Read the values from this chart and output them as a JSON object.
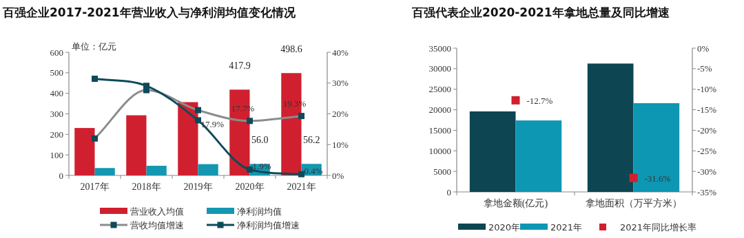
{
  "chart_data": [
    {
      "type": "bar",
      "title": "百强企业2017-2021年营业收入与净利润均值变化情况",
      "annotations": [
        "单位：亿元"
      ],
      "categories": [
        "2017年",
        "2018年",
        "2019年",
        "2020年",
        "2021年"
      ],
      "series": [
        {
          "name": "营业收入均值",
          "color": "#d0202f",
          "values": [
            231,
            293,
            357,
            417.9,
            498.6
          ],
          "value_labels": [
            null,
            null,
            null,
            "417.9",
            "498.6"
          ]
        },
        {
          "name": "净利润均值",
          "color": "#1497b0",
          "values": [
            36,
            47,
            55,
            56.0,
            56.2
          ],
          "value_labels": [
            null,
            null,
            null,
            "56.0",
            "56.2"
          ]
        },
        {
          "name": "营收均值增速",
          "type": "line",
          "axis": "y2",
          "color": "#8c8c8c",
          "values": [
            12,
            27.7,
            21.2,
            17.7,
            19.3
          ],
          "value_labels": [
            null,
            null,
            null,
            "17.7%",
            "19.3%"
          ]
        },
        {
          "name": "净利润均值增速",
          "type": "line",
          "axis": "y2",
          "color": "#0d4a5a",
          "values": [
            31.4,
            29.1,
            17.9,
            1.9,
            0.4
          ],
          "value_labels": [
            null,
            null,
            "17.9%",
            "1.9%",
            "0.4%"
          ]
        }
      ],
      "ylim": [
        0,
        600
      ],
      "yticks": [
        0,
        100,
        200,
        300,
        400,
        500,
        600
      ],
      "y2lim": [
        0,
        40
      ],
      "y2ticks": [
        {
          "value": 0,
          "label": "0%"
        },
        {
          "value": 10,
          "label": "10%"
        },
        {
          "value": 20,
          "label": "20%"
        },
        {
          "value": 30,
          "label": "30%"
        },
        {
          "value": 40,
          "label": "40%"
        }
      ],
      "marker": "square",
      "legend": "bottom"
    },
    {
      "type": "bar",
      "title": "百强代表企业2020-2021年拿地总量及同比增速",
      "categories": [
        "拿地金额(亿元)",
        "拿地面积（万平方米）"
      ],
      "series": [
        {
          "name": "2020年",
          "color": "#0d4552",
          "values": [
            19600,
            31250
          ]
        },
        {
          "name": "2021年",
          "color": "#0e97b3",
          "values": [
            17400,
            21600
          ]
        },
        {
          "name": "2021年同比增长率",
          "type": "scatter",
          "axis": "y2",
          "color": "#d0202f",
          "values": [
            -12.7,
            -31.6
          ],
          "value_labels": [
            "-12.7%",
            "-31.6%"
          ]
        }
      ],
      "ylim": [
        0,
        35000
      ],
      "yticks": [
        0,
        5000,
        10000,
        15000,
        20000,
        25000,
        30000,
        35000
      ],
      "y2lim": [
        -35,
        0
      ],
      "y2ticks": [
        {
          "value": 0,
          "label": "0%"
        },
        {
          "value": -5,
          "label": "-5%"
        },
        {
          "value": -10,
          "label": "-10%"
        },
        {
          "value": -15,
          "label": "-15%"
        },
        {
          "value": -20,
          "label": "-20%"
        },
        {
          "value": -25,
          "label": "-25%"
        },
        {
          "value": -30,
          "label": "-30%"
        },
        {
          "value": -35,
          "label": "-35%"
        }
      ],
      "marker": "square",
      "legend": "bottom"
    }
  ]
}
